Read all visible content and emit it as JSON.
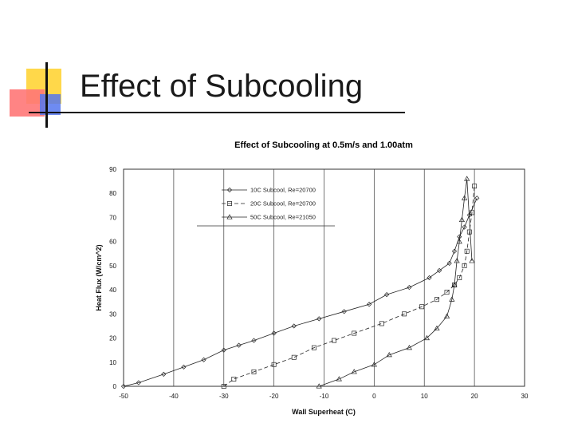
{
  "slide": {
    "title": "Effect of Subcooling"
  },
  "chart_data": {
    "type": "line",
    "title": "Effect of Subcooling at 0.5m/s and 1.00atm",
    "xlabel": "Wall Superheat (C)",
    "ylabel": "Heat Flux (W/cm^2)",
    "xlim": [
      -50,
      30
    ],
    "ylim": [
      0,
      90
    ],
    "xticks": [
      -50,
      -40,
      -30,
      -20,
      -10,
      0,
      10,
      20,
      30
    ],
    "yticks": [
      0,
      10,
      20,
      30,
      40,
      50,
      60,
      70,
      80,
      90
    ],
    "grid": true,
    "legend_position": "top-left",
    "series": [
      {
        "name": "10C Subcool, Re=20700",
        "marker": "diamond",
        "dash": "",
        "x": [
          -50,
          -47,
          -42,
          -38,
          -34,
          -30,
          -27,
          -24,
          -20,
          -16,
          -11,
          -6,
          -1,
          2.5,
          7,
          11,
          13,
          15,
          16,
          17,
          18,
          19,
          20.5
        ],
        "y": [
          0,
          1.5,
          5,
          8,
          11,
          15,
          17,
          19,
          22,
          25,
          28,
          31,
          34,
          38,
          41,
          45,
          48,
          51,
          56,
          62,
          66,
          71,
          78
        ]
      },
      {
        "name": "20C Subcool, Re=20700",
        "marker": "square",
        "dash": "5,3",
        "x": [
          -30,
          -28,
          -24,
          -20,
          -16,
          -12,
          -8,
          -4,
          1.5,
          6,
          9.5,
          12.5,
          14.5,
          16,
          17,
          18,
          18.5,
          19,
          19.5,
          20
        ],
        "y": [
          0,
          3,
          6,
          9,
          12,
          16,
          19,
          22,
          26,
          30,
          33,
          36,
          39,
          42,
          45,
          50,
          56,
          64,
          72,
          83
        ]
      },
      {
        "name": "50C Subcool, Re=21050",
        "marker": "triangle",
        "dash": "",
        "x": [
          -11,
          -7,
          -4,
          0,
          3,
          7,
          10.5,
          12.5,
          14.5,
          15.5,
          16,
          16.5,
          17,
          17.5,
          18,
          18.5,
          19.5
        ],
        "y": [
          0,
          3,
          6,
          9,
          13,
          16,
          20,
          24,
          29,
          36,
          42,
          52,
          60,
          69,
          78,
          86,
          52
        ]
      }
    ]
  }
}
